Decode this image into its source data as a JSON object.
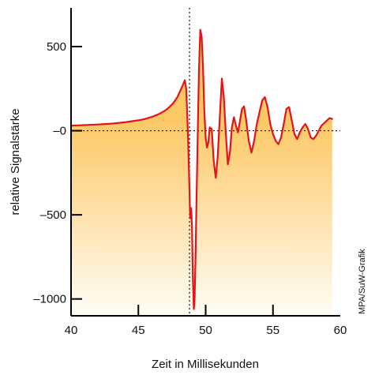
{
  "chart_data": {
    "type": "area",
    "title": "",
    "xlabel": "Zeit in Millisekunden",
    "ylabel": "relative Signalstärke",
    "xlim": [
      40,
      60
    ],
    "ylim": [
      -1100,
      730
    ],
    "x_ticks": [
      40,
      45,
      50,
      55,
      60
    ],
    "x_tick_labels": [
      "40",
      "45",
      "50",
      "55",
      "60"
    ],
    "y_ticks": [
      500,
      0,
      -500,
      -1000
    ],
    "y_tick_labels": [
      "500",
      "–0",
      "–500",
      "–1000"
    ],
    "reference_lines": {
      "horizontal_y": 0,
      "vertical_x": 48.8
    },
    "grid": false,
    "legend": "none",
    "credit": "MPA/SuW-Grafik",
    "colors": {
      "line": "#e3141b",
      "fill_top": "#fcc865",
      "fill_bottom": "#fffdf6",
      "axis": "#000000",
      "reference": "#111111"
    },
    "series": [
      {
        "x": [
          40,
          41,
          42,
          43,
          44,
          45,
          45.5,
          46,
          46.5,
          47,
          47.3,
          47.6,
          47.9,
          48.1,
          48.3,
          48.45,
          48.55,
          48.62,
          48.7,
          48.78,
          48.85,
          48.92,
          48.98,
          49.05,
          49.12,
          49.18,
          49.25,
          49.32,
          49.4,
          49.5,
          49.6,
          49.7,
          49.8,
          49.9,
          50.0,
          50.1,
          50.2,
          50.3,
          50.45,
          50.6,
          50.75,
          50.9,
          51.05,
          51.2,
          51.35,
          51.5,
          51.65,
          51.8,
          51.95,
          52.1,
          52.25,
          52.4,
          52.55,
          52.7,
          52.85,
          53.0,
          53.2,
          53.4,
          53.6,
          53.8,
          54.0,
          54.2,
          54.4,
          54.6,
          54.8,
          55.0,
          55.2,
          55.4,
          55.6,
          55.8,
          56.0,
          56.2,
          56.4,
          56.6,
          56.8,
          57.0,
          57.2,
          57.4,
          57.6,
          57.8,
          58.0,
          58.2,
          58.4,
          58.6,
          58.8,
          59.0,
          59.2,
          59.4
        ],
        "y": [
          30,
          33,
          37,
          42,
          50,
          62,
          70,
          82,
          98,
          120,
          140,
          165,
          200,
          235,
          270,
          300,
          250,
          120,
          -60,
          -300,
          -520,
          -460,
          -560,
          -880,
          -1060,
          -1000,
          -740,
          -420,
          -60,
          360,
          600,
          560,
          380,
          120,
          -40,
          -100,
          -70,
          20,
          10,
          -180,
          -280,
          -150,
          80,
          310,
          200,
          -20,
          -200,
          -130,
          20,
          80,
          30,
          -10,
          60,
          130,
          145,
          70,
          -60,
          -130,
          -60,
          40,
          110,
          180,
          200,
          140,
          40,
          -20,
          -60,
          -80,
          -40,
          40,
          130,
          140,
          60,
          -20,
          -50,
          -10,
          20,
          40,
          10,
          -40,
          -50,
          -30,
          0,
          30,
          45,
          60,
          75,
          70
        ]
      }
    ]
  }
}
